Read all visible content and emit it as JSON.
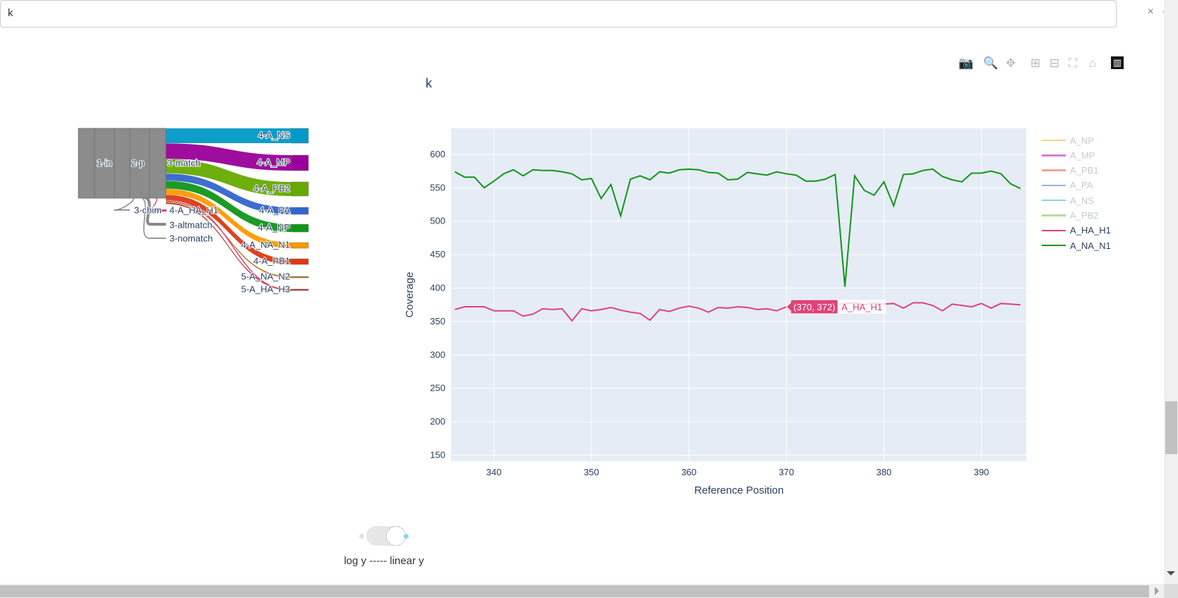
{
  "search": {
    "value": "k",
    "clear_icon": "close-icon",
    "caret_icon": "chevron-down-icon"
  },
  "toolbar": {
    "items": [
      {
        "name": "download-plot-as-png",
        "icon": "camera-icon",
        "glyph": "📷"
      },
      {
        "name": "zoom",
        "icon": "zoom-icon",
        "glyph": "🔍"
      },
      {
        "name": "pan",
        "icon": "pan-icon",
        "glyph": "✥"
      },
      {
        "name": "zoom-in",
        "icon": "plus-box-icon",
        "glyph": "⊞"
      },
      {
        "name": "zoom-out",
        "icon": "minus-box-icon",
        "glyph": "⊟"
      },
      {
        "name": "autoscale",
        "icon": "autoscale-icon",
        "glyph": "⛶"
      },
      {
        "name": "reset-axes",
        "icon": "home-icon",
        "glyph": "⌂"
      },
      {
        "name": "plotly-logo",
        "icon": "plotly-logo-icon",
        "glyph": "▥"
      }
    ]
  },
  "sankey": {
    "nodes": [
      {
        "id": "n1",
        "label": "1-in",
        "color": "#888888"
      },
      {
        "id": "n1b",
        "label": "",
        "color": "#888888"
      },
      {
        "id": "n2",
        "label": "",
        "color": "#888888"
      },
      {
        "id": "n2b",
        "label": "2-p",
        "color": "#888888"
      },
      {
        "id": "n3",
        "label": "3-match",
        "color": "#888888"
      },
      {
        "id": "chim",
        "label": "3-chim",
        "color": "#888888"
      },
      {
        "id": "alt",
        "label": "3-altmatch",
        "color": "#888888"
      },
      {
        "id": "nom",
        "label": "3-nomatch",
        "color": "#888888"
      },
      {
        "id": "ha1",
        "label": "4-A_HA_H1",
        "color": "#dd4477"
      },
      {
        "id": "ns",
        "label": "4-A_NS",
        "color": "#0099c6"
      },
      {
        "id": "mp",
        "label": "4-A_MP",
        "color": "#990099"
      },
      {
        "id": "pb2",
        "label": "4-A_PB2",
        "color": "#66aa00"
      },
      {
        "id": "pa",
        "label": "4-A_PA",
        "color": "#3366cc"
      },
      {
        "id": "np",
        "label": "4-A_NP",
        "color": "#109618"
      },
      {
        "id": "na1",
        "label": "4-A_NA_N1",
        "color": "#ff9900"
      },
      {
        "id": "pb1",
        "label": "4-A_PB1",
        "color": "#dc3912"
      },
      {
        "id": "na2",
        "label": "5-A_NA_N2",
        "color": "#b77322"
      },
      {
        "id": "ha3",
        "label": "5-A_HA_H3",
        "color": "#b82e2e"
      }
    ]
  },
  "chart": {
    "title": "k",
    "toggle": {
      "label": "log y ----- linear y",
      "state": "linear"
    },
    "hover": {
      "text": "(370, 372)",
      "name": "A_HA_H1",
      "color": "#dd4477"
    },
    "legend": [
      {
        "name": "A_NP",
        "color": "#ffa600",
        "visible": false
      },
      {
        "name": "A_MP",
        "color": "#b300b3",
        "visible": false
      },
      {
        "name": "A_PB1",
        "color": "#e8502e",
        "visible": false
      },
      {
        "name": "A_PA",
        "color": "#3366cc",
        "visible": false
      },
      {
        "name": "A_NS",
        "color": "#19a7d6",
        "visible": false
      },
      {
        "name": "A_PB2",
        "color": "#76b82a",
        "visible": false
      },
      {
        "name": "A_HA_H1",
        "color": "#dd4477",
        "visible": true
      },
      {
        "name": "A_NA_N1",
        "color": "#109618",
        "visible": true
      }
    ]
  },
  "chart_data": {
    "type": "line",
    "title": "k",
    "xlabel": "Reference Position",
    "ylabel": "Coverage",
    "xlim": [
      335.6,
      394.6
    ],
    "ylim": [
      141,
      639
    ],
    "xticks": [
      340,
      350,
      360,
      370,
      380,
      390
    ],
    "yticks": [
      150,
      200,
      250,
      300,
      350,
      400,
      450,
      500,
      550,
      600
    ],
    "grid": true,
    "legend_position": "right",
    "x": [
      336,
      337,
      338,
      339,
      340,
      341,
      342,
      343,
      344,
      345,
      346,
      347,
      348,
      349,
      350,
      351,
      352,
      353,
      354,
      355,
      356,
      357,
      358,
      359,
      360,
      361,
      362,
      363,
      364,
      365,
      366,
      367,
      368,
      369,
      370,
      371,
      372,
      373,
      374,
      375,
      376,
      377,
      378,
      379,
      380,
      381,
      382,
      383,
      384,
      385,
      386,
      387,
      388,
      389,
      390,
      391,
      392,
      393,
      394
    ],
    "series": [
      {
        "name": "A_HA_H1",
        "color": "#dd4477",
        "values": [
          368,
          372,
          372,
          372,
          366,
          366,
          366,
          358,
          361,
          369,
          368,
          369,
          351,
          369,
          366,
          368,
          371,
          367,
          364,
          362,
          352,
          368,
          365,
          370,
          373,
          370,
          364,
          371,
          370,
          372,
          371,
          368,
          369,
          366,
          372,
          374,
          375,
          375,
          375,
          375,
          377,
          378,
          375,
          378,
          376,
          377,
          370,
          378,
          378,
          374,
          366,
          376,
          374,
          372,
          377,
          370,
          377,
          376,
          375
        ]
      },
      {
        "name": "A_NA_N1",
        "color": "#109618",
        "values": [
          574,
          566,
          566,
          550,
          560,
          571,
          577,
          568,
          577,
          576,
          576,
          574,
          571,
          562,
          564,
          534,
          555,
          508,
          563,
          568,
          562,
          574,
          572,
          577,
          578,
          577,
          573,
          572,
          562,
          563,
          573,
          571,
          569,
          574,
          571,
          569,
          560,
          560,
          563,
          570,
          402,
          568,
          546,
          539,
          559,
          523,
          570,
          571,
          576,
          578,
          567,
          562,
          559,
          572,
          572,
          575,
          571,
          556,
          549
        ]
      }
    ]
  }
}
